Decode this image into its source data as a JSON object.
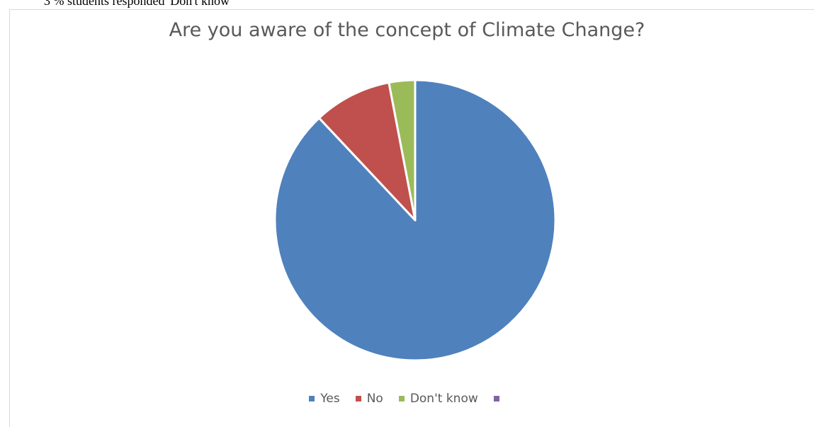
{
  "document": {
    "caption_text": "3 % students responded 'Don't know'"
  },
  "chart_data": {
    "type": "pie",
    "title": "Are you aware of the concept of Climate Change?",
    "legend_position": "bottom",
    "slices": [
      {
        "label": "Yes",
        "value": 88,
        "color": "#4f81bd"
      },
      {
        "label": "No",
        "value": 9,
        "color": "#c0504d"
      },
      {
        "label": "Don't know",
        "value": 3,
        "color": "#9bbb59"
      },
      {
        "label": "",
        "value": 0,
        "color": "#8064a2"
      }
    ]
  }
}
